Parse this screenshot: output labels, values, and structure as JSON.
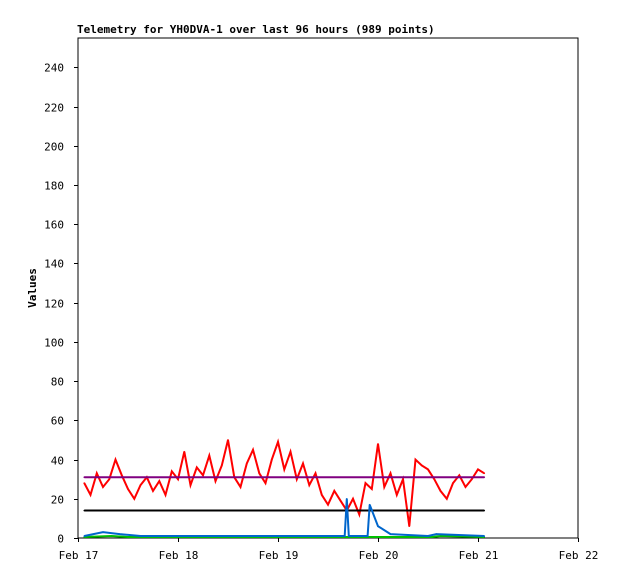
{
  "chart_data": {
    "type": "line",
    "title": "Telemetry for YH0DVA-1 over last 96 hours (989 points)",
    "ylabel": "Values",
    "xlabel": "",
    "ylim": [
      0,
      255
    ],
    "xlim": [
      "Feb 17 00:00",
      "Feb 22 00:00"
    ],
    "yticks": [
      0,
      20,
      40,
      60,
      80,
      100,
      120,
      140,
      160,
      180,
      200,
      220,
      240
    ],
    "xticks": [
      "Feb 17",
      "Feb 18",
      "Feb 19",
      "Feb 20",
      "Feb 21",
      "Feb 22"
    ],
    "grid": false,
    "series": [
      {
        "color": "#ff0000",
        "x": [
          "Feb 17 01:30",
          "Feb 17 03:00",
          "Feb 17 04:30",
          "Feb 17 06:00",
          "Feb 17 07:30",
          "Feb 17 09:00",
          "Feb 17 10:30",
          "Feb 17 12:00",
          "Feb 17 13:30",
          "Feb 17 15:00",
          "Feb 17 16:30",
          "Feb 17 18:00",
          "Feb 17 19:30",
          "Feb 17 21:00",
          "Feb 17 22:30",
          "Feb 18 00:00",
          "Feb 18 01:30",
          "Feb 18 03:00",
          "Feb 18 04:30",
          "Feb 18 06:00",
          "Feb 18 07:30",
          "Feb 18 09:00",
          "Feb 18 10:30",
          "Feb 18 12:00",
          "Feb 18 13:30",
          "Feb 18 15:00",
          "Feb 18 16:30",
          "Feb 18 18:00",
          "Feb 18 19:30",
          "Feb 18 21:00",
          "Feb 18 22:30",
          "Feb 19 00:00",
          "Feb 19 01:30",
          "Feb 19 03:00",
          "Feb 19 04:30",
          "Feb 19 06:00",
          "Feb 19 07:30",
          "Feb 19 09:00",
          "Feb 19 10:30",
          "Feb 19 12:00",
          "Feb 19 13:30",
          "Feb 19 15:00",
          "Feb 19 16:30",
          "Feb 19 18:00",
          "Feb 19 19:30",
          "Feb 19 21:00",
          "Feb 19 22:30",
          "Feb 20 00:00",
          "Feb 20 01:30",
          "Feb 20 03:00",
          "Feb 20 04:30",
          "Feb 20 06:00",
          "Feb 20 07:30",
          "Feb 20 09:00",
          "Feb 20 10:30",
          "Feb 20 12:00",
          "Feb 20 13:30",
          "Feb 20 15:00",
          "Feb 20 16:30",
          "Feb 20 18:00",
          "Feb 20 19:30",
          "Feb 20 21:00",
          "Feb 20 22:30",
          "Feb 21 00:00",
          "Feb 21 01:30"
        ],
        "values": [
          28,
          22,
          33,
          26,
          30,
          40,
          32,
          25,
          20,
          27,
          31,
          24,
          29,
          22,
          34,
          30,
          44,
          27,
          36,
          32,
          42,
          29,
          37,
          50,
          31,
          26,
          38,
          45,
          33,
          28,
          40,
          49,
          35,
          44,
          30,
          38,
          27,
          33,
          22,
          17,
          24,
          19,
          14,
          20,
          12,
          28,
          25,
          48,
          26,
          33,
          22,
          30,
          6,
          40,
          37,
          35,
          30,
          24,
          20,
          28,
          32,
          26,
          30,
          35,
          33
        ]
      },
      {
        "color": "#800080",
        "x": [
          "Feb 17 01:30",
          "Feb 21 01:30"
        ],
        "values": [
          31,
          31
        ]
      },
      {
        "color": "#000000",
        "x": [
          "Feb 17 01:30",
          "Feb 21 01:30"
        ],
        "values": [
          14,
          14
        ]
      },
      {
        "color": "#00c000",
        "x": [
          "Feb 17 01:30",
          "Feb 17 08:00",
          "Feb 17 12:00",
          "Feb 20 13:00",
          "Feb 20 15:00",
          "Feb 21 01:30"
        ],
        "values": [
          0.5,
          1,
          0.5,
          0.5,
          1,
          0.5
        ]
      },
      {
        "color": "#0066cc",
        "x": [
          "Feb 17 01:30",
          "Feb 17 06:00",
          "Feb 17 10:00",
          "Feb 17 15:00",
          "Feb 19 16:00",
          "Feb 19 16:30",
          "Feb 19 17:00",
          "Feb 19 21:30",
          "Feb 19 22:00",
          "Feb 20 00:00",
          "Feb 20 03:00",
          "Feb 20 12:00",
          "Feb 20 14:00",
          "Feb 21 01:30"
        ],
        "values": [
          1,
          3,
          2,
          1,
          1,
          20,
          1,
          1,
          17,
          6,
          2,
          1,
          2,
          1
        ]
      }
    ]
  }
}
